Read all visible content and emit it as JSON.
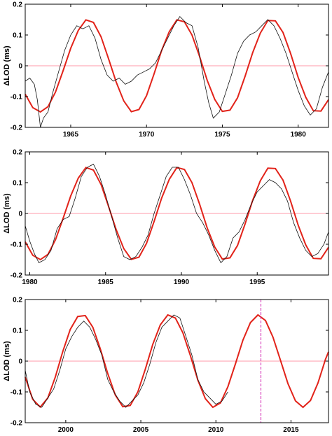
{
  "chart_data": [
    {
      "type": "line",
      "panel": 1,
      "xlabel": "",
      "ylabel": "ΔLOD (ms)",
      "xlim": [
        1962,
        1982
      ],
      "ylim": [
        -0.2,
        0.2
      ],
      "xticks": [
        1965,
        1970,
        1975,
        1980
      ],
      "yticks": [
        -0.2,
        -0.1,
        0,
        0.1,
        0.2
      ],
      "ytick_labels": [
        "-0.2",
        "-0.1",
        "0",
        "0.1",
        "0.2"
      ],
      "reference_line": {
        "y": 0,
        "color": "#ff9aa8"
      },
      "series": [
        {
          "color": "#e2231a",
          "kind": "model",
          "x": [
            1962,
            1962.5,
            1963,
            1963.5,
            1964,
            1964.5,
            1965,
            1965.5,
            1966,
            1966.5,
            1967,
            1967.5,
            1968,
            1968.5,
            1969,
            1969.5,
            1970,
            1970.5,
            1971,
            1971.5,
            1972,
            1972.5,
            1973,
            1973.5,
            1974,
            1974.5,
            1975,
            1975.5,
            1976,
            1976.5,
            1977,
            1977.5,
            1978,
            1978.5,
            1979,
            1979.5,
            1980,
            1980.5,
            1981,
            1981.5,
            1982
          ],
          "y": [
            -0.092,
            -0.136,
            -0.15,
            -0.133,
            -0.085,
            -0.016,
            0.057,
            0.115,
            0.149,
            0.141,
            0.094,
            0.022,
            -0.053,
            -0.114,
            -0.149,
            -0.142,
            -0.097,
            -0.026,
            0.05,
            0.111,
            0.149,
            0.143,
            0.1,
            0.03,
            -0.047,
            -0.109,
            -0.148,
            -0.144,
            -0.104,
            -0.034,
            0.043,
            0.106,
            0.147,
            0.146,
            0.108,
            0.04,
            -0.038,
            -0.102,
            -0.146,
            -0.147,
            -0.11
          ]
        },
        {
          "color": "#111111",
          "kind": "observed",
          "x": [
            1962,
            1962.3,
            1962.6,
            1962.8,
            1963.0,
            1963.2,
            1963.5,
            1963.8,
            1964.2,
            1964.6,
            1965.0,
            1965.4,
            1965.8,
            1966.2,
            1966.6,
            1967.0,
            1967.4,
            1967.8,
            1968.2,
            1968.6,
            1969.0,
            1969.4,
            1969.8,
            1970.2,
            1970.6,
            1971.0,
            1971.4,
            1971.8,
            1972.2,
            1972.6,
            1973.0,
            1973.4,
            1973.8,
            1974.1,
            1974.4,
            1974.8,
            1975.2,
            1975.6,
            1976.0,
            1976.4,
            1976.8,
            1977.2,
            1977.6,
            1978.0,
            1978.4,
            1978.8,
            1979.2,
            1979.6,
            1980.0,
            1980.4,
            1980.8,
            1981.2,
            1981.6,
            1982.0
          ],
          "y": [
            -0.05,
            -0.04,
            -0.06,
            -0.11,
            -0.2,
            -0.17,
            -0.15,
            -0.09,
            -0.02,
            0.05,
            0.1,
            0.13,
            0.12,
            0.13,
            0.09,
            0.02,
            -0.03,
            -0.05,
            -0.04,
            -0.06,
            -0.05,
            -0.03,
            -0.02,
            -0.01,
            0.01,
            0.05,
            0.09,
            0.13,
            0.16,
            0.14,
            0.13,
            0.06,
            -0.05,
            -0.12,
            -0.17,
            -0.15,
            -0.09,
            -0.03,
            0.04,
            0.08,
            0.1,
            0.11,
            0.13,
            0.15,
            0.13,
            0.09,
            0.04,
            -0.02,
            -0.08,
            -0.13,
            -0.16,
            -0.14,
            -0.07,
            -0.02
          ]
        }
      ]
    },
    {
      "type": "line",
      "panel": 2,
      "xlabel": "",
      "ylabel": "ΔLOD (ms)",
      "xlim": [
        1979.7,
        1999.7
      ],
      "ylim": [
        -0.2,
        0.2
      ],
      "xticks": [
        1980,
        1985,
        1990,
        1995
      ],
      "yticks": [
        -0.2,
        -0.1,
        0,
        0.1,
        0.2
      ],
      "ytick_labels": [
        "-0.2",
        "-0.1",
        "0",
        "0.1",
        "0.2"
      ],
      "reference_line": {
        "y": 0,
        "color": "#ff9aa8"
      },
      "series": [
        {
          "color": "#e2231a",
          "kind": "model",
          "x": [
            1979.7,
            1980.2,
            1980.7,
            1981.2,
            1981.7,
            1982.2,
            1982.7,
            1983.2,
            1983.7,
            1984.2,
            1984.7,
            1985.2,
            1985.7,
            1986.2,
            1986.7,
            1987.2,
            1987.7,
            1988.2,
            1988.7,
            1989.2,
            1989.7,
            1990.2,
            1990.7,
            1991.2,
            1991.7,
            1992.2,
            1992.7,
            1993.2,
            1993.7,
            1994.2,
            1994.7,
            1995.2,
            1995.7,
            1996.2,
            1996.7,
            1997.2,
            1997.7,
            1998.2,
            1998.7,
            1999.2,
            1999.7
          ],
          "y": [
            -0.092,
            -0.136,
            -0.15,
            -0.133,
            -0.085,
            -0.016,
            0.057,
            0.115,
            0.149,
            0.141,
            0.094,
            0.022,
            -0.053,
            -0.114,
            -0.149,
            -0.142,
            -0.097,
            -0.026,
            0.05,
            0.111,
            0.149,
            0.143,
            0.1,
            0.03,
            -0.047,
            -0.109,
            -0.148,
            -0.144,
            -0.104,
            -0.034,
            0.043,
            0.106,
            0.147,
            0.146,
            0.108,
            0.04,
            -0.038,
            -0.102,
            -0.146,
            -0.147,
            -0.11
          ]
        },
        {
          "color": "#111111",
          "kind": "observed",
          "x": [
            1979.7,
            1980.0,
            1980.3,
            1980.6,
            1981.0,
            1981.4,
            1981.8,
            1982.2,
            1982.6,
            1983.0,
            1983.4,
            1983.8,
            1984.2,
            1984.6,
            1985.0,
            1985.4,
            1985.8,
            1986.2,
            1986.6,
            1987.0,
            1987.4,
            1987.8,
            1988.2,
            1988.6,
            1989.0,
            1989.4,
            1989.8,
            1990.2,
            1990.6,
            1991.0,
            1991.4,
            1991.8,
            1992.2,
            1992.6,
            1993.0,
            1993.4,
            1993.8,
            1994.2,
            1994.6,
            1995.0,
            1995.4,
            1995.8,
            1996.2,
            1996.6,
            1997.0,
            1997.4,
            1997.8,
            1998.2,
            1998.6,
            1999.0,
            1999.4,
            1999.7
          ],
          "y": [
            -0.04,
            -0.09,
            -0.13,
            -0.16,
            -0.15,
            -0.12,
            -0.05,
            -0.02,
            -0.01,
            0.05,
            0.12,
            0.15,
            0.16,
            0.12,
            0.06,
            -0.01,
            -0.08,
            -0.14,
            -0.15,
            -0.14,
            -0.11,
            -0.07,
            0.0,
            0.06,
            0.12,
            0.15,
            0.15,
            0.11,
            0.06,
            0.0,
            -0.03,
            -0.07,
            -0.12,
            -0.16,
            -0.14,
            -0.08,
            -0.06,
            -0.02,
            0.03,
            0.07,
            0.09,
            0.11,
            0.1,
            0.08,
            0.04,
            -0.03,
            -0.08,
            -0.12,
            -0.14,
            -0.13,
            -0.1,
            -0.06
          ]
        }
      ]
    },
    {
      "type": "line",
      "panel": 3,
      "xlabel": "",
      "ylabel": "ΔLOD (ms)",
      "xlim": [
        1997.3,
        2017.5
      ],
      "ylim": [
        -0.2,
        0.2
      ],
      "xticks": [
        2000,
        2005,
        2010,
        2015
      ],
      "yticks": [
        -0.2,
        -0.1,
        0,
        0.1,
        0.2
      ],
      "ytick_labels": [
        "-0.2",
        "-0.1",
        "0",
        "0.1",
        "0.2"
      ],
      "reference_line": {
        "y": 0,
        "color": "#ff9aa8"
      },
      "vertical_marker": {
        "x": 2013.0,
        "color": "#d01fb0"
      },
      "series": [
        {
          "color": "#e2231a",
          "kind": "model",
          "x": [
            1997.3,
            1997.8,
            1998.3,
            1998.8,
            1999.3,
            1999.8,
            2000.3,
            2000.8,
            2001.3,
            2001.8,
            2002.3,
            2002.8,
            2003.3,
            2003.8,
            2004.3,
            2004.8,
            2005.3,
            2005.8,
            2006.3,
            2006.8,
            2007.3,
            2007.8,
            2008.3,
            2008.8,
            2009.3,
            2009.8,
            2010.3,
            2010.8,
            2011.3,
            2011.8,
            2012.3,
            2012.8,
            2013.3,
            2013.8,
            2014.3,
            2014.8,
            2015.3,
            2015.8,
            2016.3,
            2016.8,
            2017.3,
            2017.5
          ],
          "y": [
            -0.052,
            -0.124,
            -0.149,
            -0.12,
            -0.052,
            0.031,
            0.103,
            0.145,
            0.148,
            0.11,
            0.04,
            -0.041,
            -0.11,
            -0.148,
            -0.144,
            -0.1,
            -0.026,
            0.055,
            0.118,
            0.15,
            0.14,
            0.092,
            0.018,
            -0.062,
            -0.122,
            -0.15,
            -0.136,
            -0.083,
            -0.009,
            0.068,
            0.125,
            0.15,
            0.132,
            0.078,
            0.003,
            -0.073,
            -0.129,
            -0.15,
            -0.128,
            -0.071,
            0.006,
            0.03
          ]
        },
        {
          "color": "#111111",
          "kind": "observed",
          "x": [
            1997.3,
            1997.6,
            1998.0,
            1998.4,
            1998.8,
            1999.2,
            1999.6,
            2000.0,
            2000.4,
            2000.8,
            2001.2,
            2001.6,
            2002.0,
            2002.4,
            2002.8,
            2003.2,
            2003.6,
            2004.0,
            2004.4,
            2004.8,
            2005.2,
            2005.6,
            2006.0,
            2006.4,
            2006.8,
            2007.2,
            2007.6,
            2008.0,
            2008.4,
            2008.8,
            2009.2,
            2009.6,
            2010.0,
            2010.4,
            2010.8
          ],
          "y": [
            -0.03,
            -0.1,
            -0.14,
            -0.15,
            -0.12,
            -0.09,
            -0.03,
            0.04,
            0.08,
            0.11,
            0.13,
            0.11,
            0.07,
            0.02,
            -0.06,
            -0.1,
            -0.13,
            -0.15,
            -0.13,
            -0.11,
            -0.07,
            -0.01,
            0.06,
            0.11,
            0.13,
            0.15,
            0.14,
            0.08,
            0.02,
            -0.06,
            -0.1,
            -0.12,
            -0.14,
            -0.13,
            -0.1
          ]
        }
      ]
    }
  ]
}
